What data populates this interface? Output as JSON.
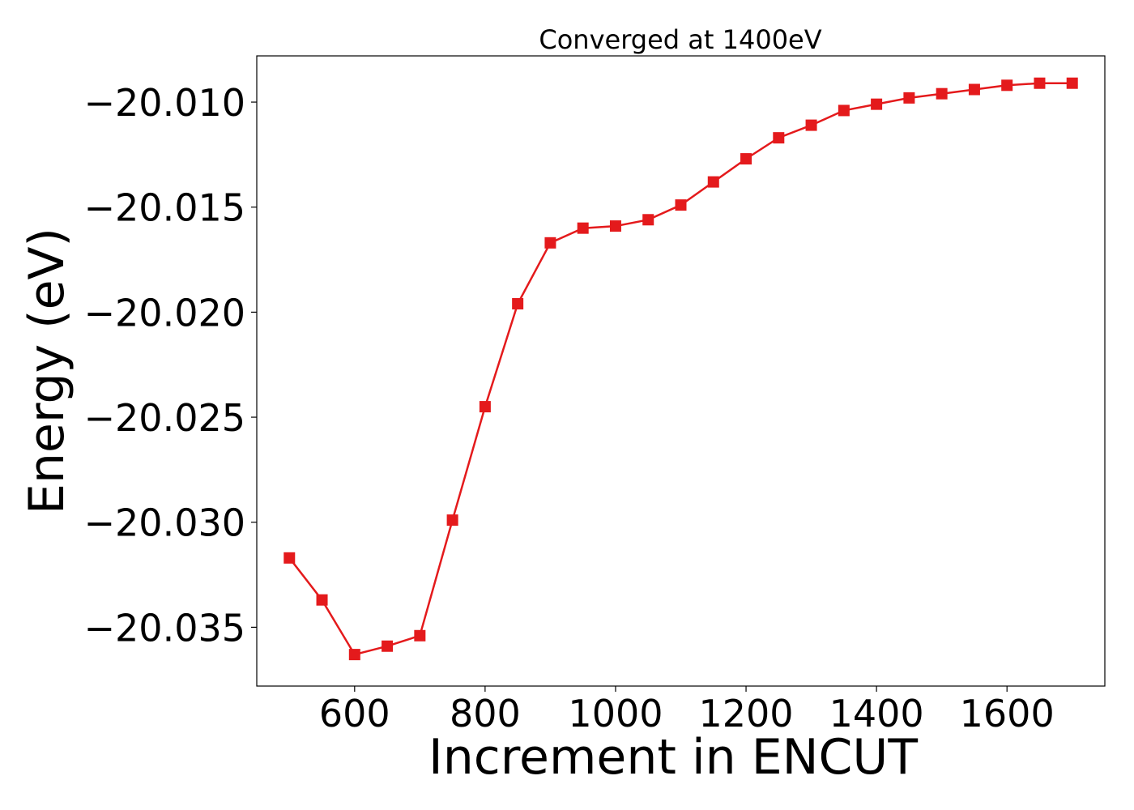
{
  "chart_data": {
    "type": "line",
    "title": "Converged at 1400eV",
    "xlabel": "Increment in ENCUT",
    "ylabel": "Energy (eV)",
    "xlim": [
      450,
      1750
    ],
    "ylim": [
      -20.0378,
      -20.0078
    ],
    "x_ticks": [
      600,
      800,
      1000,
      1200,
      1400,
      1600
    ],
    "x_tick_labels": [
      "600",
      "800",
      "1000",
      "1200",
      "1400",
      "1600"
    ],
    "y_ticks": [
      -20.01,
      -20.015,
      -20.02,
      -20.025,
      -20.03,
      -20.035
    ],
    "y_tick_labels": [
      "−20.010",
      "−20.015",
      "−20.020",
      "−20.025",
      "−20.030",
      "−20.035"
    ],
    "grid": false,
    "legend": null,
    "series": [
      {
        "color": "#e41a1c",
        "marker": "square",
        "x": [
          500,
          550,
          600,
          650,
          700,
          750,
          800,
          850,
          900,
          950,
          1000,
          1050,
          1100,
          1150,
          1200,
          1250,
          1300,
          1350,
          1400,
          1450,
          1500,
          1550,
          1600,
          1650,
          1700
        ],
        "y": [
          -20.0317,
          -20.0337,
          -20.0363,
          -20.0359,
          -20.0354,
          -20.0299,
          -20.0245,
          -20.0196,
          -20.0167,
          -20.016,
          -20.0159,
          -20.0156,
          -20.0149,
          -20.0138,
          -20.0127,
          -20.0117,
          -20.0111,
          -20.0104,
          -20.0101,
          -20.0098,
          -20.0096,
          -20.0094,
          -20.0092,
          -20.0091,
          -20.0091
        ]
      }
    ]
  }
}
